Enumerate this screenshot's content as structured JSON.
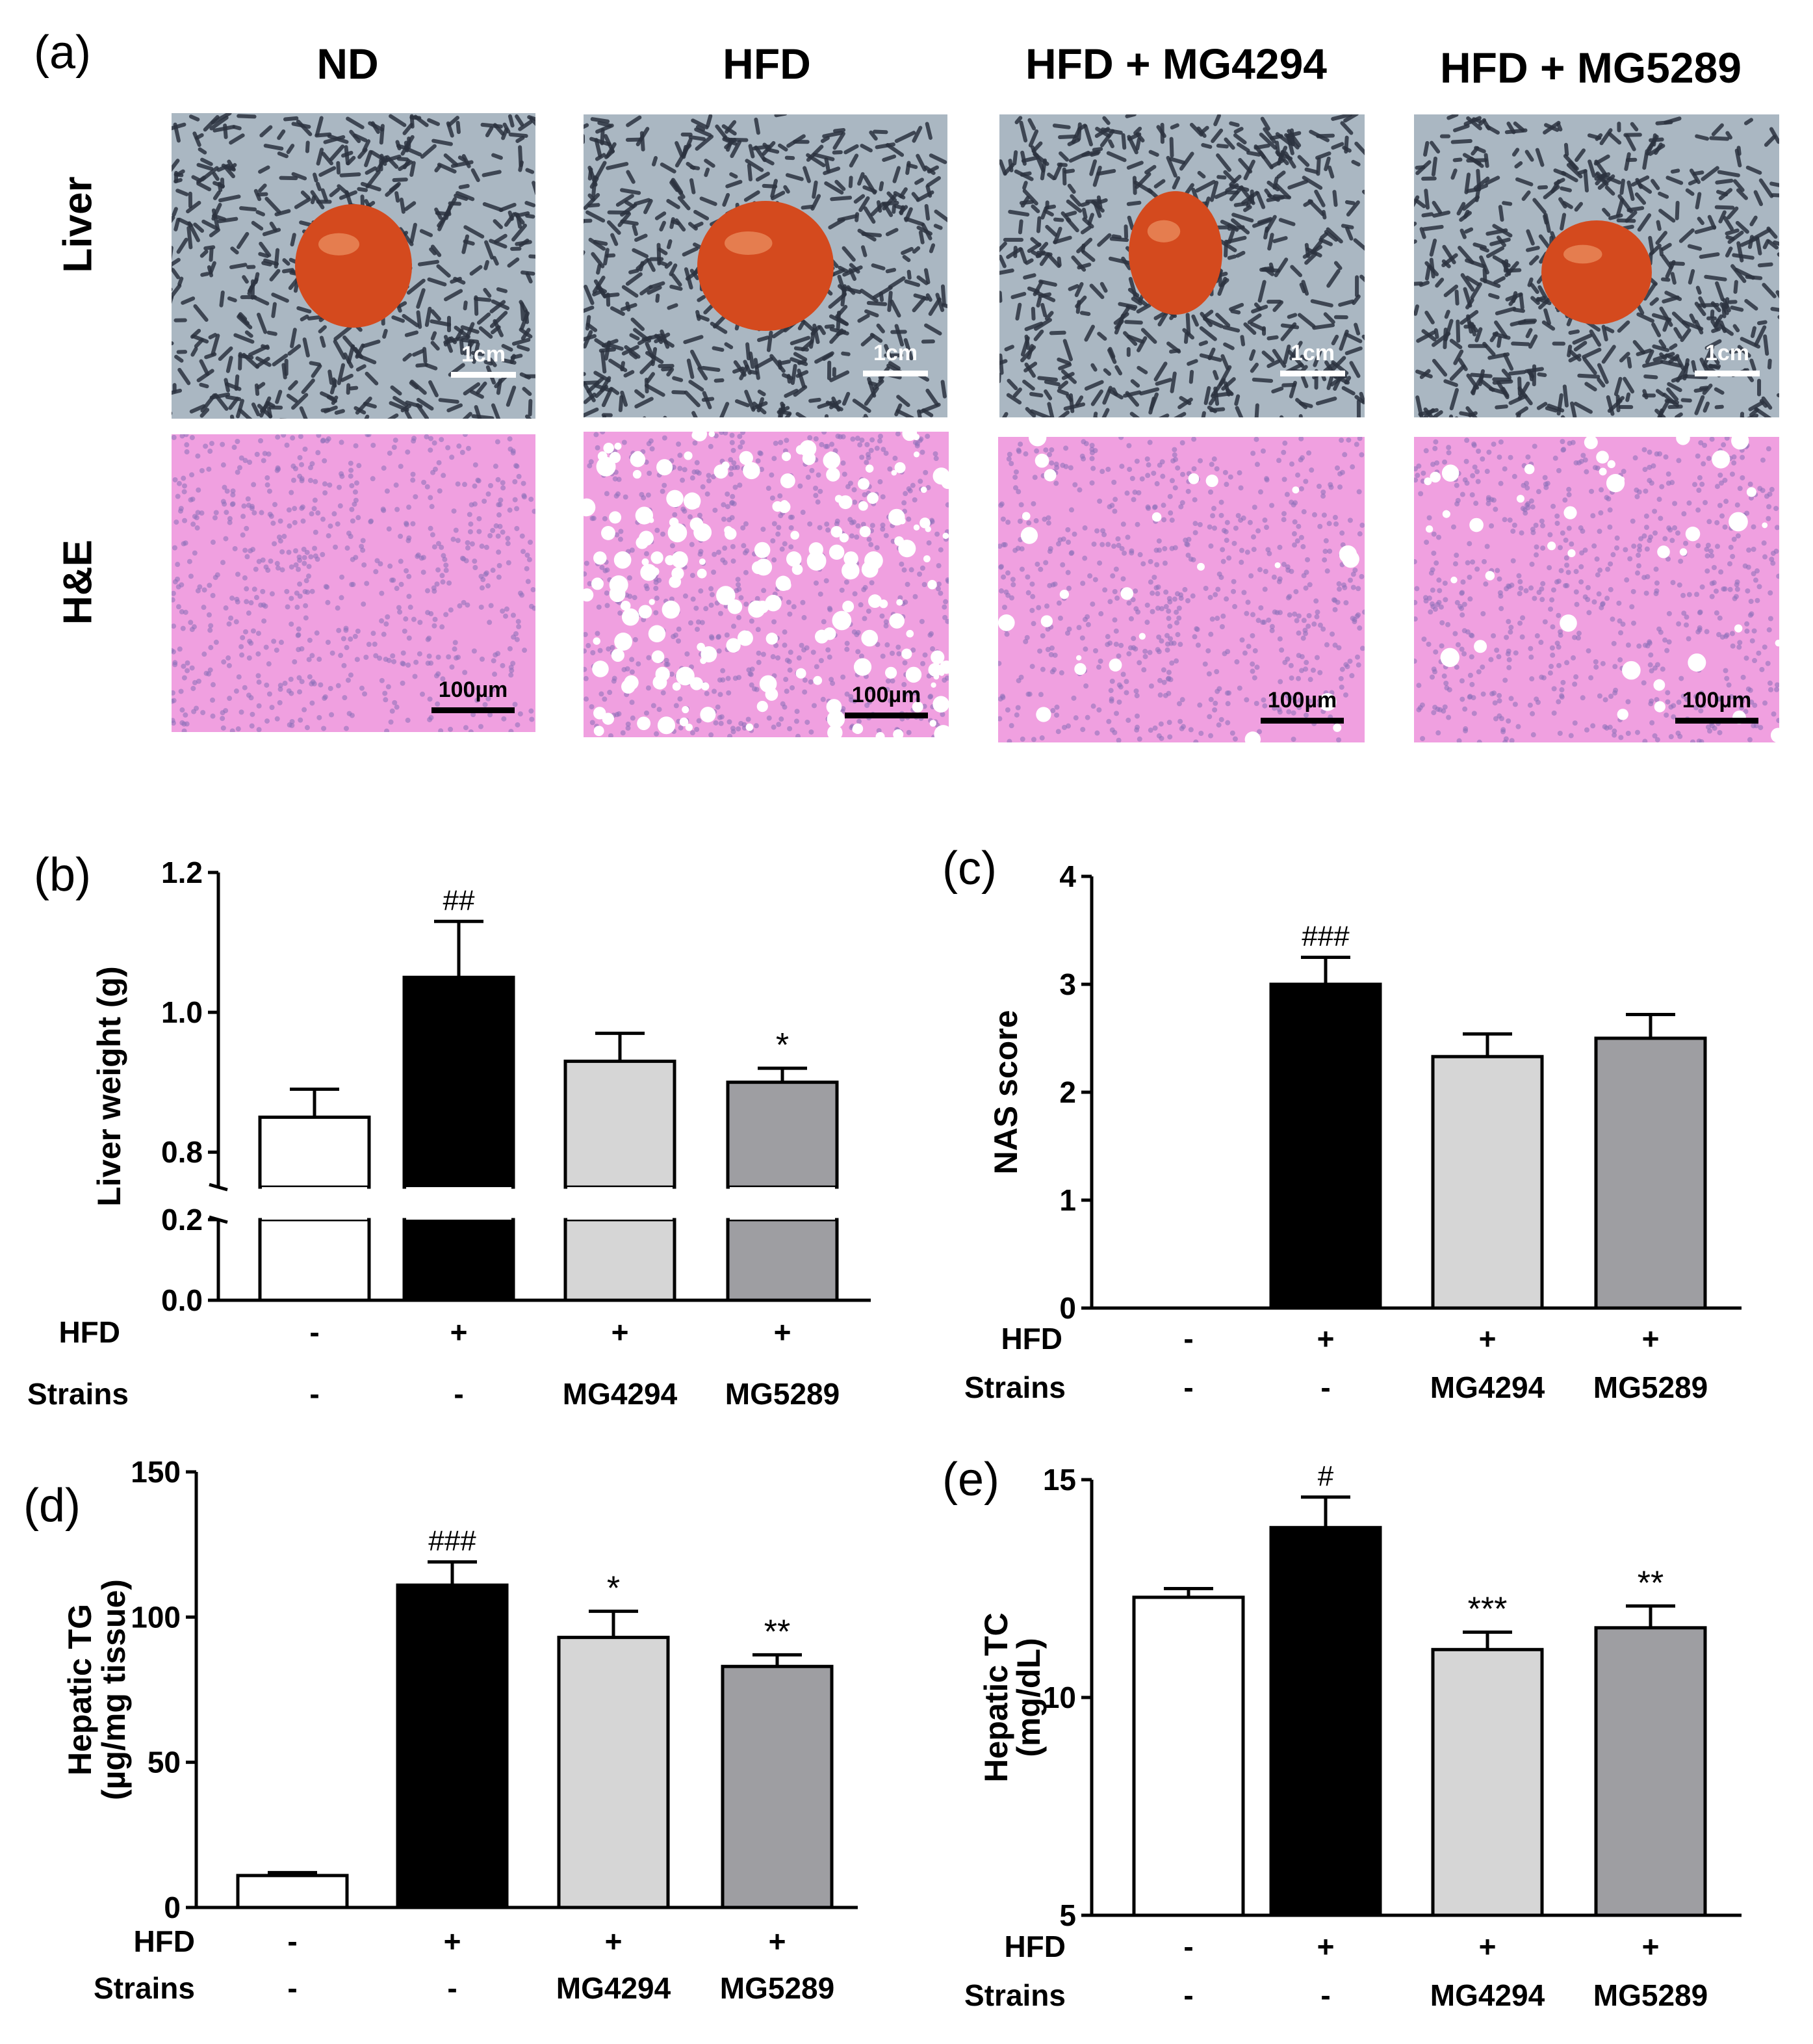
{
  "panel_a": {
    "letter": "(a)",
    "columns": [
      "ND",
      "HFD",
      "HFD + MG4294",
      "HFD + MG5289"
    ],
    "rows": [
      "Liver",
      "H&E"
    ],
    "scale_liver": "1cm",
    "scale_he": "100µm",
    "colors": {
      "tissue_pink": "#f0a0e0",
      "liver_red": "#d44a1e",
      "paper_bg": "#9aa9b6",
      "vacuole": "#ffffff"
    }
  },
  "chart_data": [
    {
      "id": "b",
      "letter": "(b)",
      "type": "bar",
      "ylabel": "Liver weight (g)",
      "broken_axis": true,
      "lower_ticks": [
        "0.0",
        "0.2"
      ],
      "upper_ticks": [
        "0.8",
        "1.0",
        "1.2"
      ],
      "lower_range": [
        0.0,
        0.2
      ],
      "upper_range": [
        0.75,
        1.2
      ],
      "categories": [
        "ND",
        "HFD",
        "HFD + MG4294",
        "HFD + MG5289"
      ],
      "values": [
        0.85,
        1.05,
        0.93,
        0.9
      ],
      "errors": [
        0.04,
        0.08,
        0.04,
        0.02
      ],
      "annotations": [
        "",
        "##",
        "",
        "*"
      ],
      "row_labels": [
        "HFD",
        "Strains"
      ],
      "hfd": [
        "-",
        "+",
        "+",
        "+"
      ],
      "strains": [
        "-",
        "-",
        "MG4294",
        "MG5289"
      ]
    },
    {
      "id": "c",
      "letter": "(c)",
      "type": "bar",
      "ylabel": "NAS score",
      "ylim": [
        0,
        4
      ],
      "ticks": [
        "0",
        "1",
        "2",
        "3",
        "4"
      ],
      "categories": [
        "ND",
        "HFD",
        "HFD + MG4294",
        "HFD + MG5289"
      ],
      "values": [
        0,
        3.0,
        2.33,
        2.5
      ],
      "errors": [
        0,
        0.25,
        0.21,
        0.22
      ],
      "annotations": [
        "",
        "###",
        "",
        ""
      ],
      "row_labels": [
        "HFD",
        "Strains"
      ],
      "hfd": [
        "-",
        "+",
        "+",
        "+"
      ],
      "strains": [
        "-",
        "-",
        "MG4294",
        "MG5289"
      ]
    },
    {
      "id": "d",
      "letter": "(d)",
      "type": "bar",
      "ylabel": "Hepatic TG",
      "ylabel2": "(µg/mg tissue)",
      "ylim": [
        0,
        150
      ],
      "ticks": [
        "0",
        "50",
        "100",
        "150"
      ],
      "categories": [
        "ND",
        "HFD",
        "HFD + MG4294",
        "HFD + MG5289"
      ],
      "values": [
        11,
        111,
        93,
        83
      ],
      "errors": [
        1,
        8,
        9,
        4
      ],
      "annotations": [
        "",
        "###",
        "*",
        "**"
      ],
      "row_labels": [
        "HFD",
        "Strains"
      ],
      "hfd": [
        "-",
        "+",
        "+",
        "+"
      ],
      "strains": [
        "-",
        "-",
        "MG4294",
        "MG5289"
      ]
    },
    {
      "id": "e",
      "letter": "(e)",
      "type": "bar",
      "ylabel": "Hepatic TC",
      "ylabel2": "(mg/dL)",
      "ylim": [
        5,
        15
      ],
      "ticks": [
        "5",
        "10",
        "15"
      ],
      "categories": [
        "ND",
        "HFD",
        "HFD + MG4294",
        "HFD + MG5289"
      ],
      "values": [
        12.3,
        13.9,
        11.1,
        11.6
      ],
      "errors": [
        0.2,
        0.7,
        0.4,
        0.5
      ],
      "annotations": [
        "",
        "#",
        "***",
        "**"
      ],
      "row_labels": [
        "HFD",
        "Strains"
      ],
      "hfd": [
        "-",
        "+",
        "+",
        "+"
      ],
      "strains": [
        "-",
        "-",
        "MG4294",
        "MG5289"
      ]
    }
  ],
  "bar_colors": [
    "#ffffff",
    "#000000",
    "#d6d6d6",
    "#9e9ea2"
  ]
}
